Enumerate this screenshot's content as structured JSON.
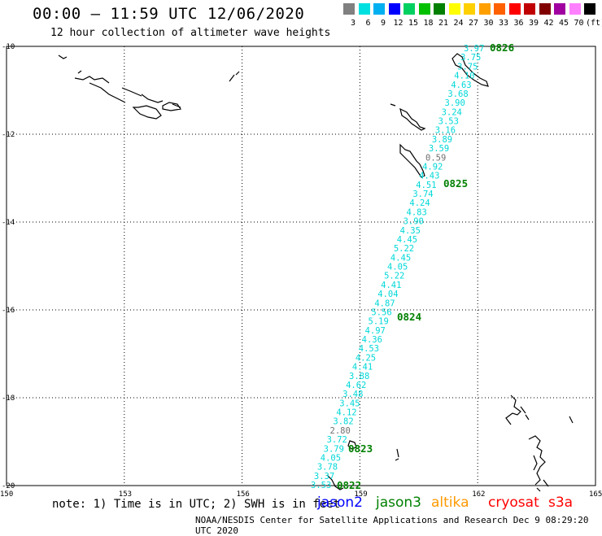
{
  "header": {
    "title": "00:00 – 11:59 UTC 12/06/2020",
    "subtitle": "12 hour collection of altimeter wave heights"
  },
  "legend": {
    "labels": [
      "3",
      "6",
      "9",
      "12",
      "15",
      "18",
      "21",
      "24",
      "27",
      "30",
      "33",
      "36",
      "39",
      "42",
      "45",
      "70",
      "(ft)"
    ],
    "colors": [
      "#808080",
      "#00e0e0",
      "#00b0f0",
      "#0000ff",
      "#00d060",
      "#00c000",
      "#008000",
      "#ffff00",
      "#ffd000",
      "#ffa000",
      "#ff6000",
      "#ff0000",
      "#c00000",
      "#800000",
      "#a000a0",
      "#ff80ff",
      "#000000"
    ]
  },
  "map": {
    "lat_labels": [
      "-10",
      "-12",
      "-14",
      "-16",
      "-18",
      "-20"
    ],
    "lon_labels": [
      "150",
      "153",
      "156",
      "159",
      "162",
      "165"
    ],
    "lat_range": [
      -20,
      -10
    ],
    "lon_range": [
      150,
      165
    ]
  },
  "track": {
    "swh_labels": [
      {
        "v": "3.97",
        "c": "#00d8d8"
      },
      {
        "v": "3.75",
        "c": "#00d8d8"
      },
      {
        "v": "3.75",
        "c": "#00d8d8"
      },
      {
        "v": "4.10",
        "c": "#00d8d8"
      },
      {
        "v": "4.63",
        "c": "#00d8d8"
      },
      {
        "v": "3.68",
        "c": "#00d8d8"
      },
      {
        "v": "3.90",
        "c": "#00d8d8"
      },
      {
        "v": "3.24",
        "c": "#00d8d8"
      },
      {
        "v": "3.53",
        "c": "#00d8d8"
      },
      {
        "v": "3.16",
        "c": "#00d8d8"
      },
      {
        "v": "3.89",
        "c": "#00d8d8"
      },
      {
        "v": "3.59",
        "c": "#00d8d8"
      },
      {
        "v": "0.59",
        "c": "#707070"
      },
      {
        "v": "4.92",
        "c": "#00d8d8"
      },
      {
        "v": "4.43",
        "c": "#00d8d8"
      },
      {
        "v": "4.51",
        "c": "#00d8d8"
      },
      {
        "v": "3.74",
        "c": "#00d8d8"
      },
      {
        "v": "4.24",
        "c": "#00d8d8"
      },
      {
        "v": "4.83",
        "c": "#00d8d8"
      },
      {
        "v": "3.90",
        "c": "#00d8d8"
      },
      {
        "v": "4.35",
        "c": "#00d8d8"
      },
      {
        "v": "4.45",
        "c": "#00d8d8"
      },
      {
        "v": "5.22",
        "c": "#00d8d8"
      },
      {
        "v": "4.45",
        "c": "#00d8d8"
      },
      {
        "v": "4.05",
        "c": "#00d8d8"
      },
      {
        "v": "5.22",
        "c": "#00d8d8"
      },
      {
        "v": "4.41",
        "c": "#00d8d8"
      },
      {
        "v": "4.04",
        "c": "#00d8d8"
      },
      {
        "v": "4.87",
        "c": "#00d8d8"
      },
      {
        "v": "5.56",
        "c": "#00d8d8"
      },
      {
        "v": "5.19",
        "c": "#00d8d8"
      },
      {
        "v": "4.97",
        "c": "#00d8d8"
      },
      {
        "v": "4.36",
        "c": "#00d8d8"
      },
      {
        "v": "4.53",
        "c": "#00d8d8"
      },
      {
        "v": "4.25",
        "c": "#00d8d8"
      },
      {
        "v": "4.41",
        "c": "#00d8d8"
      },
      {
        "v": "3.88",
        "c": "#00d8d8"
      },
      {
        "v": "4.62",
        "c": "#00d8d8"
      },
      {
        "v": "3.48",
        "c": "#00d8d8"
      },
      {
        "v": "3.45",
        "c": "#00d8d8"
      },
      {
        "v": "4.12",
        "c": "#00d8d8"
      },
      {
        "v": "3.82",
        "c": "#00d8d8"
      },
      {
        "v": "2.80",
        "c": "#707070"
      },
      {
        "v": "3.72",
        "c": "#00d8d8"
      },
      {
        "v": "3.79",
        "c": "#00d8d8"
      },
      {
        "v": "4.05",
        "c": "#00d8d8"
      },
      {
        "v": "3.78",
        "c": "#00d8d8"
      },
      {
        "v": "3.37",
        "c": "#00d8d8"
      },
      {
        "v": "3.53",
        "c": "#00d8d8"
      }
    ],
    "time_labels": [
      "0826",
      "0825",
      "0824",
      "0823",
      "0822"
    ],
    "time_color": "#008000"
  },
  "footer": {
    "note": "note: 1) Time is in UTC; 2) SWH is in feet",
    "satellites": [
      {
        "name": "jason2",
        "color": "#0000ff"
      },
      {
        "name": "jason3",
        "color": "#008000"
      },
      {
        "name": "altika",
        "color": "#ff9900"
      },
      {
        "name": "cryosat",
        "color": "#ff0000"
      },
      {
        "name": "s3a",
        "color": "#ff0000"
      }
    ],
    "credit": "NOAA/NESDIS Center for Satellite Applications and Research   Dec  9 08:29:20 UTC 2020"
  }
}
